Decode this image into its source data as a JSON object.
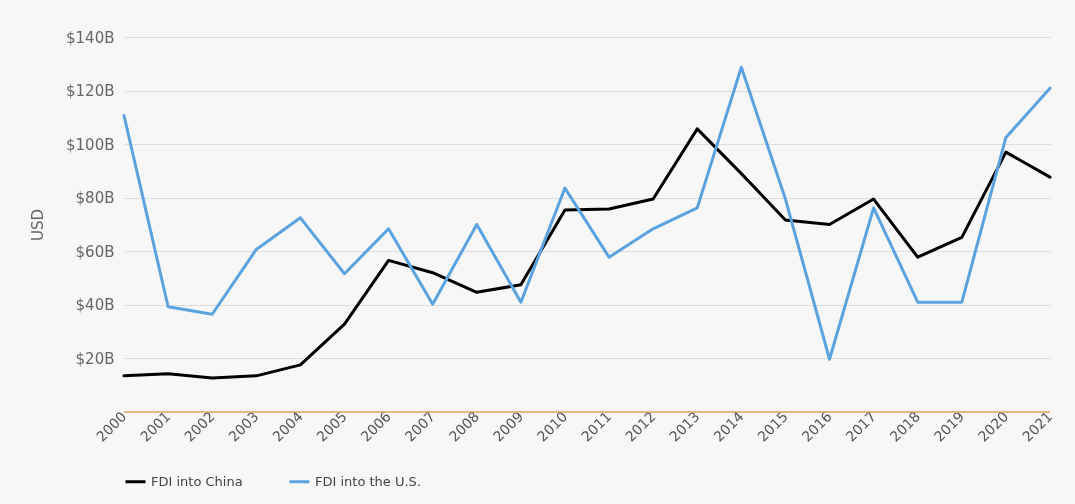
{
  "chart_data": {
    "type": "line",
    "ylabel": "USD",
    "categories": [
      "2000",
      "2001",
      "2002",
      "2003",
      "2004",
      "2005",
      "2006",
      "2007",
      "2008",
      "2009",
      "2010",
      "2011",
      "2012",
      "2013",
      "2014",
      "2015",
      "2016",
      "2017",
      "2018",
      "2019",
      "2020",
      "2021"
    ],
    "series": [
      {
        "name": "FDI into China",
        "color": "#000000",
        "values": [
          13.5,
          14.3,
          12.7,
          13.5,
          17.6,
          32.8,
          56.6,
          52,
          44.7,
          47.5,
          75.4,
          75.8,
          79.5,
          105.7,
          89,
          71.7,
          70,
          79.5,
          57.8,
          65.2,
          97,
          87.7
        ]
      },
      {
        "name": "FDI into the U.S.",
        "color": "#5ba3e0",
        "values": [
          110.7,
          39.3,
          36.5,
          60.7,
          72.5,
          51.6,
          68.4,
          40.2,
          70,
          41,
          83.6,
          57.8,
          68.4,
          76.2,
          128.7,
          79.5,
          19.7,
          76.2,
          41,
          41,
          102.5,
          120.9
        ]
      }
    ],
    "ylim": [
      0,
      140
    ],
    "yticks": [
      {
        "value": 20,
        "label": "$20B"
      },
      {
        "value": 40,
        "label": "$40B"
      },
      {
        "value": 60,
        "label": "$60B"
      },
      {
        "value": 80,
        "label": "$80B"
      },
      {
        "value": 100,
        "label": "$100B"
      },
      {
        "value": 120,
        "label": "$120B"
      },
      {
        "value": 140,
        "label": "$140B"
      }
    ],
    "grid": "y",
    "legend": "bottom",
    "marker": "none",
    "line_style": "solid"
  }
}
